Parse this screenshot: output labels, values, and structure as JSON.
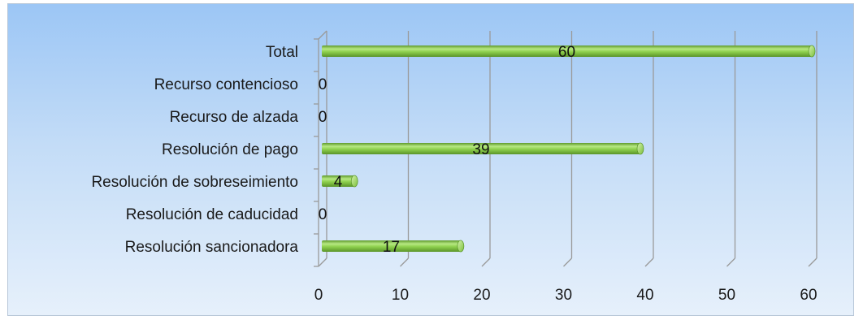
{
  "chart_data": {
    "type": "bar",
    "orientation": "horizontal",
    "style": "3d-cylinder",
    "categories": [
      "Resolución sancionadora",
      "Resolución de caducidad",
      "Resolución de sobreseimiento",
      "Resolución de pago",
      "Recurso de alzada",
      "Recurso contencioso",
      "Total"
    ],
    "values": [
      17,
      0,
      4,
      39,
      0,
      0,
      60
    ],
    "data_labels": [
      "17",
      "0",
      "4",
      "39",
      "0",
      "0",
      "60"
    ],
    "xlim": [
      0,
      60
    ],
    "x_ticks": [
      "0",
      "10",
      "20",
      "30",
      "40",
      "50",
      "60"
    ],
    "grid": true,
    "legend": "none",
    "title": "",
    "xlabel": "",
    "ylabel": "",
    "colors": {
      "bar": "#8fd14f",
      "bar_dark": "#5e9a2c",
      "bar_light": "#c6ee9a",
      "grid": "#9a9a9a",
      "background_top": "#9cc6f5",
      "background_bottom": "#e6f0fb"
    }
  }
}
